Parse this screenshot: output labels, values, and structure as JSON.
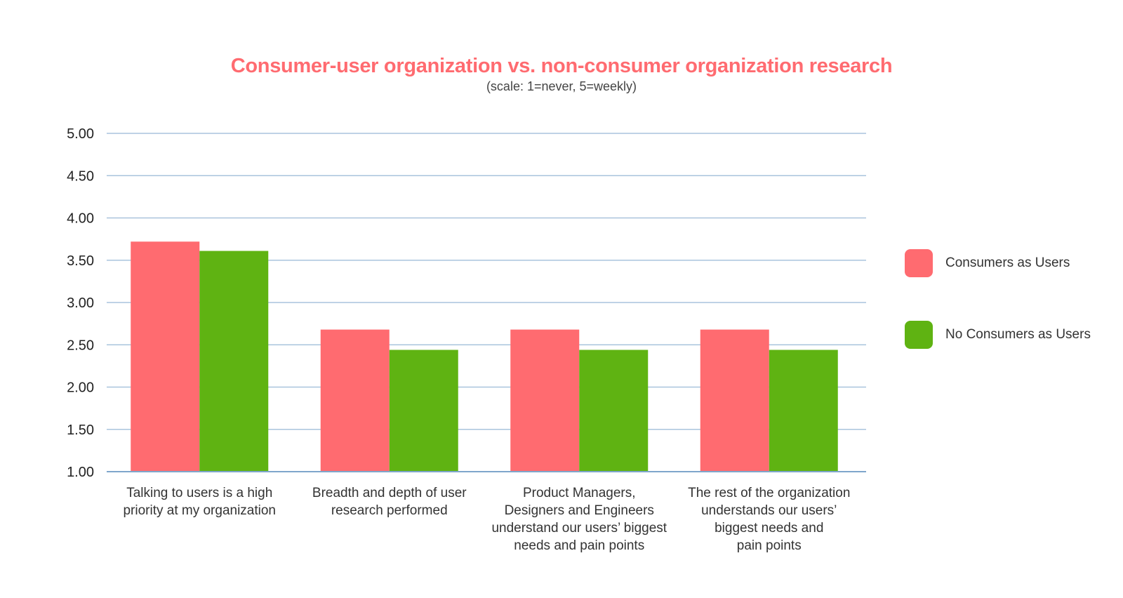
{
  "chart_data": {
    "type": "bar",
    "title": "Consumer-user organization vs. non-consumer organization research",
    "subtitle": "(scale: 1=never, 5=weekly)",
    "xlabel": "",
    "ylabel": "",
    "ylim": [
      1,
      5
    ],
    "yticks": [
      1.0,
      1.5,
      2.0,
      2.5,
      3.0,
      3.5,
      4.0,
      4.5,
      5.0
    ],
    "ytick_labels": [
      "1.00",
      "1.50",
      "2.00",
      "2.50",
      "3.00",
      "3.50",
      "4.00",
      "4.50",
      "5.00"
    ],
    "grid": true,
    "legend_position": "right",
    "categories": [
      [
        "Talking to users is a high",
        "priority at my organization"
      ],
      [
        "Breadth and depth of user",
        "research performed"
      ],
      [
        "Product Managers,",
        "Designers and Engineers",
        "understand our users’ biggest",
        "needs and pain points"
      ],
      [
        "The rest of the organization",
        "understands our users’",
        "biggest needs and",
        "pain points"
      ]
    ],
    "series": [
      {
        "name": "Consumers as Users",
        "color": "#ff6b70",
        "values": [
          3.72,
          2.68,
          2.68,
          2.68
        ]
      },
      {
        "name": "No Consumers as Users",
        "color": "#5fb312",
        "values": [
          3.61,
          2.44,
          2.44,
          2.44
        ]
      }
    ]
  },
  "colors": {
    "title": "#ff6b70",
    "gridline": "#a9c4dd",
    "axis": "#7fa6cc"
  }
}
